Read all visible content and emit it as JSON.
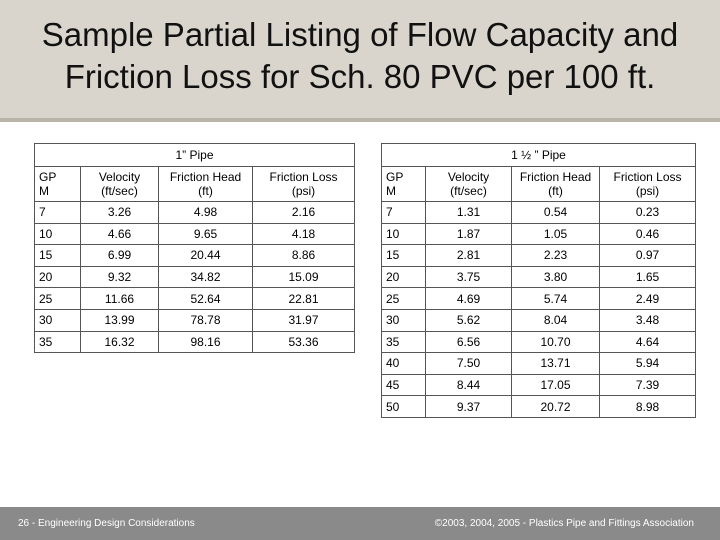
{
  "title_line1": "Sample Partial Listing of Flow Capacity and",
  "title_line2": "Friction Loss for Sch. 80 PVC per 100 ft.",
  "tables": [
    {
      "caption": "1” Pipe",
      "headers": [
        [
          "GP",
          "M"
        ],
        [
          "Velocity",
          "(ft/sec)"
        ],
        [
          "Friction Head",
          "(ft)"
        ],
        [
          "Friction Loss",
          "(psi)"
        ]
      ],
      "rows": [
        [
          "7",
          "3.26",
          "4.98",
          "2.16"
        ],
        [
          "10",
          "4.66",
          "9.65",
          "4.18"
        ],
        [
          "15",
          "6.99",
          "20.44",
          "8.86"
        ],
        [
          "20",
          "9.32",
          "34.82",
          "15.09"
        ],
        [
          "25",
          "11.66",
          "52.64",
          "22.81"
        ],
        [
          "30",
          "13.99",
          "78.78",
          "31.97"
        ],
        [
          "35",
          "16.32",
          "98.16",
          "53.36"
        ]
      ]
    },
    {
      "caption": "1 ½ ” Pipe",
      "headers": [
        [
          "GP",
          "M"
        ],
        [
          "Velocity",
          "(ft/sec)"
        ],
        [
          "Friction Head",
          "(ft)"
        ],
        [
          "Friction Loss",
          "(psi)"
        ]
      ],
      "rows": [
        [
          "7",
          "1.31",
          "0.54",
          "0.23"
        ],
        [
          "10",
          "1.87",
          "1.05",
          "0.46"
        ],
        [
          "15",
          "2.81",
          "2.23",
          "0.97"
        ],
        [
          "20",
          "3.75",
          "3.80",
          "1.65"
        ],
        [
          "25",
          "4.69",
          "5.74",
          "2.49"
        ],
        [
          "30",
          "5.62",
          "8.04",
          "3.48"
        ],
        [
          "35",
          "6.56",
          "10.70",
          "4.64"
        ],
        [
          "40",
          "7.50",
          "13.71",
          "5.94"
        ],
        [
          "45",
          "8.44",
          "17.05",
          "7.39"
        ],
        [
          "50",
          "9.37",
          "20.72",
          "8.98"
        ]
      ]
    }
  ],
  "footer": {
    "left": "26 - Engineering Design Considerations",
    "right": "©2003, 2004, 2005 - Plastics Pipe and Fittings Association"
  }
}
